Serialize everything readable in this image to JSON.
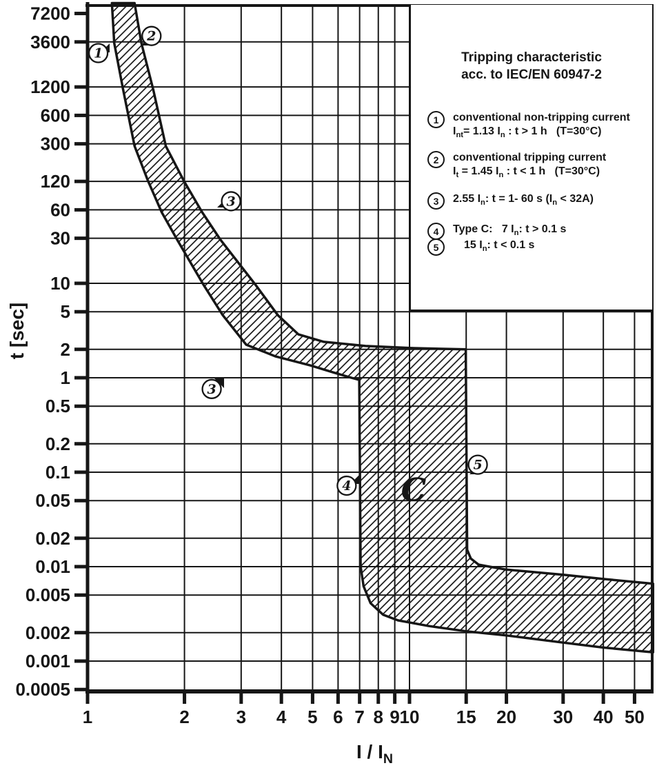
{
  "chart_data": {
    "type": "area",
    "title": "Tripping characteristic",
    "subtitle": "acc. to IEC/EN 60947-2",
    "xlabel": "I / I~N~",
    "ylabel": "t [sec]",
    "x_ticks": [
      1,
      2,
      3,
      4,
      5,
      6,
      7,
      8,
      9,
      10,
      15,
      20,
      30,
      40,
      50
    ],
    "y_ticks": [
      7200,
      3600,
      1200,
      600,
      300,
      120,
      60,
      30,
      10,
      5,
      2,
      1,
      0.5,
      0.2,
      0.1,
      0.05,
      0.02,
      0.01,
      0.005,
      0.002,
      0.001,
      0.0005
    ],
    "xlim": [
      1,
      57.3
    ],
    "ylim": [
      0.0005,
      9300
    ],
    "grid": true,
    "band_label": "C",
    "band_label_pos": [
      10.3,
      0.066
    ],
    "series": [
      {
        "name": "left-boundary",
        "points": [
          [
            1.19,
            9270
          ],
          [
            1.21,
            3500
          ],
          [
            1.29,
            1125
          ],
          [
            1.4,
            284
          ],
          [
            1.54,
            122
          ],
          [
            1.7,
            56.5
          ],
          [
            1.9,
            28.8
          ],
          [
            2.29,
            9.7
          ],
          [
            2.63,
            4.6
          ],
          [
            3.11,
            2.24
          ],
          [
            3.84,
            1.68
          ],
          [
            4.92,
            1.35
          ],
          [
            5.84,
            1.13
          ],
          [
            6.6,
            1.0
          ],
          [
            6.98,
            0.95
          ],
          [
            7.05,
            0.01
          ],
          [
            7.2,
            0.0062
          ],
          [
            7.57,
            0.0041
          ],
          [
            8.28,
            0.0031
          ],
          [
            9.2,
            0.0027
          ],
          [
            11.5,
            0.00235
          ],
          [
            15.3,
            0.00205
          ],
          [
            20,
            0.00187
          ],
          [
            30,
            0.00157
          ],
          [
            40,
            0.00139
          ],
          [
            57.1,
            0.00124
          ]
        ]
      },
      {
        "name": "right-boundary",
        "points": [
          [
            1.4,
            9270
          ],
          [
            1.47,
            3500
          ],
          [
            1.6,
            1125
          ],
          [
            1.75,
            284
          ],
          [
            1.99,
            122
          ],
          [
            2.27,
            56.5
          ],
          [
            2.59,
            28.8
          ],
          [
            3.32,
            9.7
          ],
          [
            3.9,
            4.6
          ],
          [
            4.52,
            2.88
          ],
          [
            5.42,
            2.4
          ],
          [
            7.3,
            2.17
          ],
          [
            10.3,
            2.06
          ],
          [
            14.95,
            2.0
          ],
          [
            15.1,
            0.0151
          ],
          [
            15.5,
            0.0122
          ],
          [
            16.4,
            0.0105
          ],
          [
            17.7,
            0.01
          ],
          [
            20,
            0.0093
          ],
          [
            30,
            0.0082
          ],
          [
            40,
            0.0074
          ],
          [
            57.1,
            0.0066
          ]
        ]
      }
    ],
    "annotations": [
      {
        "num": "1",
        "x": 1.08,
        "t": 2740
      },
      {
        "num": "2",
        "x": 1.58,
        "t": 4160
      },
      {
        "num": "3",
        "x": 2.79,
        "t": 74
      },
      {
        "num": "3",
        "x": 2.43,
        "t": 0.76
      },
      {
        "num": "4",
        "x": 6.38,
        "t": 0.072
      },
      {
        "num": "5",
        "x": 16.3,
        "t": 0.12
      }
    ],
    "legend": {
      "items": [
        {
          "num": "1",
          "lines": [
            "conventional non-tripping current",
            "I~nt~= 1.13 I~n~ : t > 1 h  (T=30°C)"
          ]
        },
        {
          "num": "2",
          "lines": [
            "conventional tripping current",
            "I~t~ = 1.45 I~n~ : t < 1 h  (T=30°C)"
          ]
        },
        {
          "num": "3",
          "lines": [
            "2.55 I~n~: t = 1- 60 s (I~n~ < 32A)"
          ]
        },
        {
          "num": "4",
          "lines": [
            "Type C:  7 I~n~: t > 0.1 s"
          ]
        },
        {
          "num": "5",
          "lines": [
            "15 I~n~: t < 0.1 s"
          ]
        }
      ]
    }
  }
}
